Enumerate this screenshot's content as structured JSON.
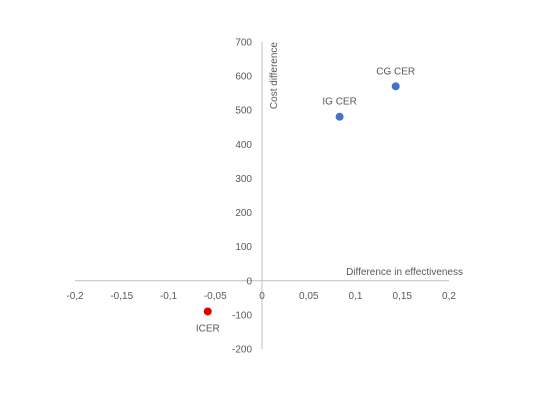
{
  "chart_data": {
    "type": "scatter",
    "xlabel": "Difference in effectiveness",
    "ylabel": "Cost difference",
    "xlim": [
      -0.2,
      0.2
    ],
    "ylim": [
      -200,
      700
    ],
    "x_ticks": [
      -0.2,
      -0.15,
      -0.1,
      -0.05,
      0,
      0.05,
      0.1,
      0.15,
      0.2
    ],
    "x_tick_labels": [
      "-0,2",
      "-0,15",
      "-0,1",
      "-0,05",
      "0",
      "0,05",
      "0,1",
      "0,15",
      "0,2"
    ],
    "y_ticks": [
      -200,
      -100,
      0,
      100,
      200,
      300,
      400,
      500,
      600,
      700
    ],
    "y_tick_labels": [
      "-200",
      "-100",
      "0",
      "100",
      "200",
      "300",
      "400",
      "500",
      "600",
      "700"
    ],
    "grid": false,
    "points": [
      {
        "label": "CG CER",
        "x": 0.143,
        "y": 570,
        "color": "#4472c4",
        "label_pos": "above"
      },
      {
        "label": "IG CER",
        "x": 0.083,
        "y": 481,
        "color": "#4472c4",
        "label_pos": "above"
      },
      {
        "label": "ICER",
        "x": -0.058,
        "y": -90,
        "color": "#e00000",
        "label_pos": "below"
      }
    ]
  }
}
